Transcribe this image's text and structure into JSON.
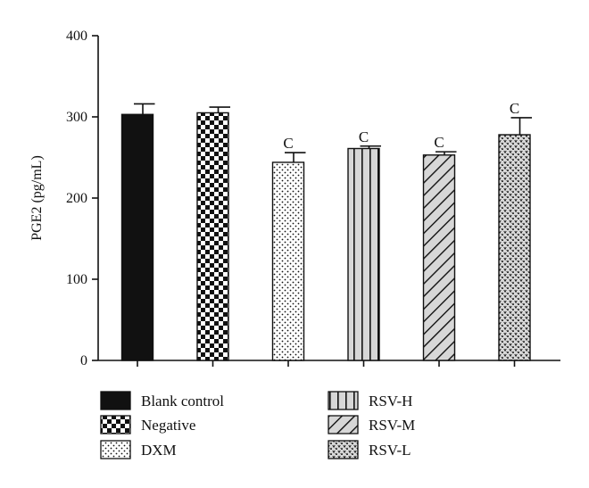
{
  "chart_data": {
    "type": "bar",
    "title": "",
    "xlabel": "",
    "ylabel": "PGE2 (pg/mL)",
    "ylim": [
      0,
      400
    ],
    "yticks": [
      0,
      100,
      200,
      300,
      400
    ],
    "grid": false,
    "legend_position": "bottom",
    "categories": [
      "Blank control",
      "Negative",
      "DXM",
      "RSV-H",
      "RSV-M",
      "RSV-L"
    ],
    "values": [
      303,
      305,
      244,
      261,
      253,
      278
    ],
    "errors": [
      13,
      7,
      12,
      3,
      4,
      21
    ],
    "annotations": [
      "",
      "",
      "C",
      "C",
      "C",
      "C"
    ],
    "patterns": [
      "solid-black",
      "checkerboard",
      "dots",
      "vertical-stripes",
      "diagonal-stripes",
      "hearts-dense"
    ],
    "colors": {
      "fill_light": "#d7d7d7",
      "ink": "#111111",
      "white": "#ffffff"
    }
  }
}
